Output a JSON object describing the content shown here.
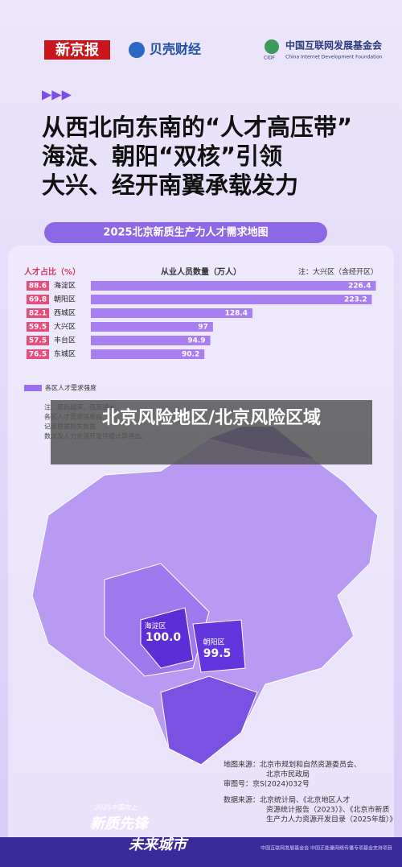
{
  "header": {
    "logo1": "新京报",
    "logo2": "贝壳财经",
    "logo3": "中国互联网发展基金会",
    "logo3_abbr": "CIDF",
    "logo3_en": "China Internet Development Foundation"
  },
  "title": {
    "arrows": "▶▶▶",
    "lines": [
      "从西北向东南的“人才高压带”",
      "海淀、朝阳“双核”引领",
      "大兴、经开南翼承载发力"
    ]
  },
  "banner": "2025北京新质生产力人才需求地图",
  "share_column": {
    "header": "人才占比（%）",
    "values": [
      "88.6",
      "69.8",
      "82.1",
      "59.5",
      "57.5",
      "76.5"
    ]
  },
  "chart_data": {
    "type": "bar",
    "orientation": "horizontal",
    "title": "从业人员数量（万人）",
    "note": "注：大兴区（含经开区）",
    "categories": [
      "海淀区",
      "朝阳区",
      "西城区",
      "大兴区",
      "丰台区",
      "东城区"
    ],
    "values": [
      226.4,
      223.2,
      128.4,
      97,
      94.9,
      90.2
    ],
    "color": "#a77ff0",
    "xlim": [
      0,
      228
    ]
  },
  "legend": "各区人才需求强度",
  "note_lines": [
    "注：颜色越深，强度越大。",
    "各区人才需求强度由",
    "记者根据相关数据",
    "数次及人力资源开发评级计算得出。"
  ],
  "overlay": "北京风险地区/北京风险区域",
  "map": {
    "labels": [
      {
        "name": "海淀区",
        "value": "100.0"
      },
      {
        "name": "朝阳区",
        "value": "99.5"
      }
    ]
  },
  "sources": [
    "地图来源：北京市规划和自然资源委员会、",
    "北京市民政局",
    "审图号：京S(2024)032号",
    "数据来源：北京统计局、《北京地区人才",
    "资源统计报告（2023）》、《北京市新质",
    "生产力人力资源开发目录（2025年版）》"
  ],
  "footer": {
    "small": "2025中国向上",
    "big1": "新质先锋",
    "big2": "未来城市",
    "credit": "中国互联网发展基金会 中国正能量网络传播专项基金支持项目"
  }
}
